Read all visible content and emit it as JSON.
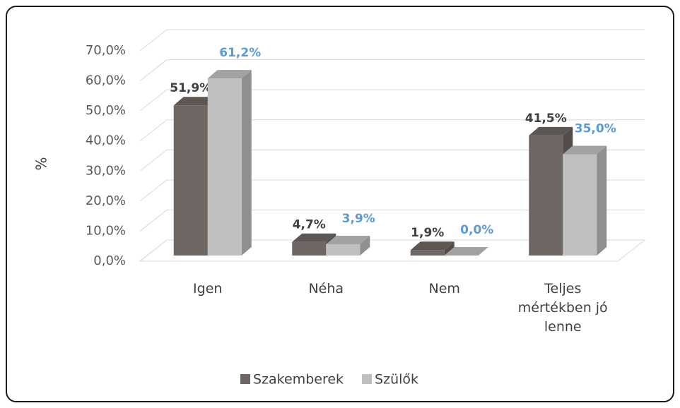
{
  "chart_data": {
    "type": "bar3d",
    "y_label": "%",
    "categories": [
      "Igen",
      "Néha",
      "Nem",
      "Teljes mértékben jó lenne"
    ],
    "series": [
      {
        "name": "Szakemberek",
        "color": "#6d6663",
        "label_color": "#404040",
        "values": [
          51.9,
          4.7,
          1.9,
          41.5
        ],
        "value_labels": [
          "51,9%",
          "4,7%",
          "1,9%",
          "41,5%"
        ]
      },
      {
        "name": "Szülők",
        "color": "#bfbfbf",
        "label_color": "#5b9bd5",
        "values": [
          61.2,
          3.9,
          0.0,
          35.0
        ],
        "value_labels": [
          "61,2%",
          "3,9%",
          "0,0%",
          "35,0%"
        ]
      }
    ],
    "ylim": [
      0,
      70
    ],
    "yticks": [
      {
        "value": 0,
        "label": "0,0%"
      },
      {
        "value": 10,
        "label": "10,0%"
      },
      {
        "value": 20,
        "label": "20,0%"
      },
      {
        "value": 30,
        "label": "30,0%"
      },
      {
        "value": 40,
        "label": "40,0%"
      },
      {
        "value": 50,
        "label": "50,0%"
      },
      {
        "value": 60,
        "label": "60,0%"
      },
      {
        "value": 70,
        "label": "70,0%"
      }
    ],
    "grid": true,
    "legend": "bottom"
  }
}
